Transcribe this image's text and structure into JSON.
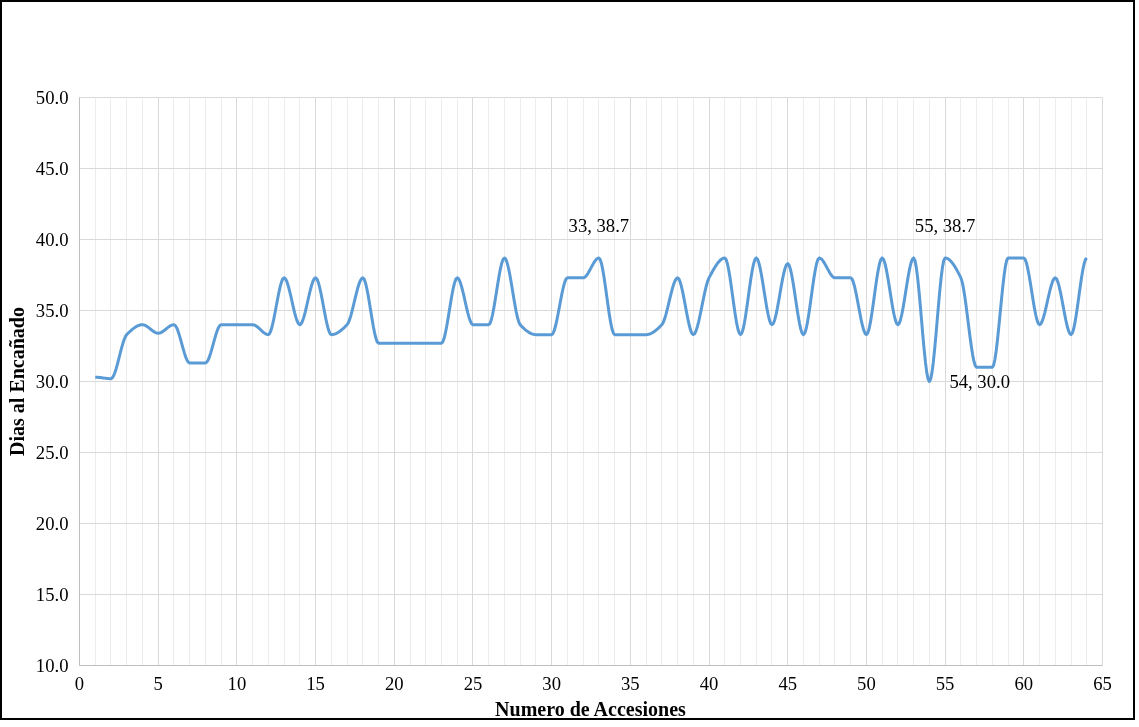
{
  "chart_data": {
    "type": "line",
    "xlabel": "Numero de Accesiones",
    "ylabel": "Dias al Encañado",
    "x": [
      1,
      2,
      3,
      4,
      5,
      6,
      7,
      8,
      9,
      10,
      11,
      12,
      13,
      14,
      15,
      16,
      17,
      18,
      19,
      20,
      21,
      22,
      23,
      24,
      25,
      26,
      27,
      28,
      29,
      30,
      31,
      32,
      33,
      34,
      35,
      36,
      37,
      38,
      39,
      40,
      41,
      42,
      43,
      44,
      45,
      46,
      47,
      48,
      49,
      50,
      51,
      52,
      53,
      54,
      55,
      56,
      57,
      58,
      59,
      60,
      61,
      62,
      63,
      64
    ],
    "series": [
      {
        "color": "#5b9bd5",
        "values": [
          30.3,
          30.2,
          33.3,
          34.0,
          33.4,
          34.0,
          31.3,
          31.3,
          34.0,
          34.0,
          34.0,
          33.3,
          37.3,
          34.0,
          37.3,
          33.3,
          34.0,
          37.3,
          32.7,
          32.7,
          32.7,
          32.7,
          32.7,
          37.3,
          34.0,
          34.0,
          38.7,
          34.0,
          33.3,
          33.3,
          37.3,
          37.3,
          38.7,
          33.3,
          33.3,
          33.3,
          34.0,
          37.3,
          33.3,
          37.3,
          38.7,
          33.3,
          38.7,
          34.0,
          38.3,
          33.3,
          38.7,
          37.3,
          37.3,
          33.3,
          38.7,
          34.0,
          38.7,
          30.0,
          38.7,
          37.3,
          31.0,
          31.0,
          38.7,
          38.7,
          34.0,
          37.3,
          33.3,
          38.7
        ]
      }
    ],
    "annotations": [
      {
        "text": "33, 38.7",
        "x": 33,
        "y": 38.7
      },
      {
        "text": "55, 38.7",
        "x": 55,
        "y": 38.7
      },
      {
        "text": "54, 30.0",
        "x": 54,
        "y": 30.0
      }
    ],
    "xlim": [
      0,
      65
    ],
    "xticks": [
      0,
      5,
      10,
      15,
      20,
      25,
      30,
      35,
      40,
      45,
      50,
      55,
      60,
      65
    ],
    "ylim": [
      10,
      50
    ],
    "yticks": [
      {
        "value": 10,
        "label": "10.0"
      },
      {
        "value": 15,
        "label": "15.0"
      },
      {
        "value": 20,
        "label": "20.0"
      },
      {
        "value": 25,
        "label": "25.0"
      },
      {
        "value": 30,
        "label": "30.0"
      },
      {
        "value": 35,
        "label": "35.0"
      },
      {
        "value": 40,
        "label": "40.0"
      },
      {
        "value": 45,
        "label": "45.0"
      },
      {
        "value": 50,
        "label": "50.0"
      }
    ],
    "grid": true,
    "marker": "none",
    "line_style": "solid"
  }
}
